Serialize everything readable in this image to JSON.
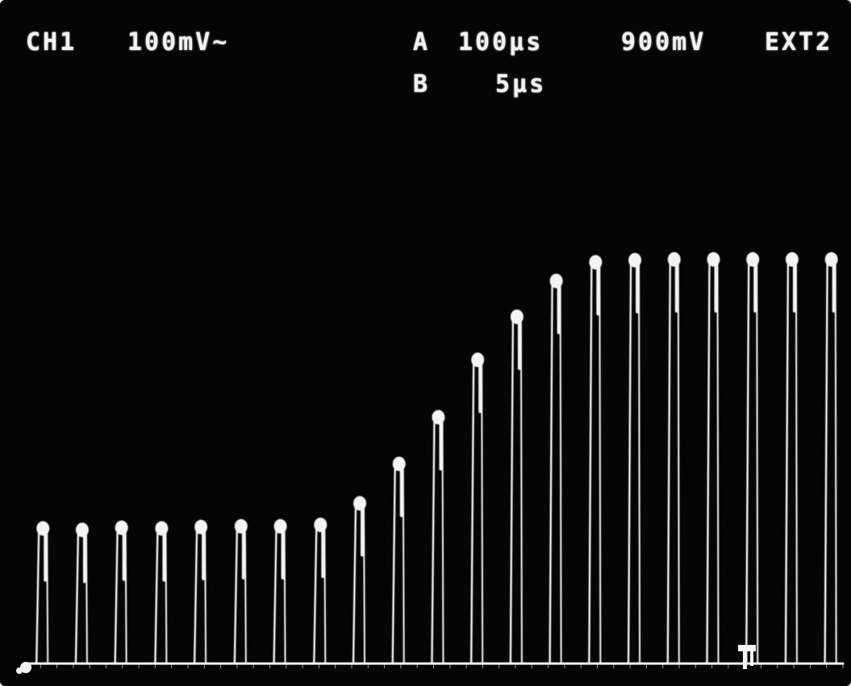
{
  "readouts": {
    "ch1_label": "CH1",
    "ch1_scale": "100mV~",
    "a_label": "A",
    "a_timebase": "100µs",
    "trigger_level": "900mV",
    "trigger_source": "EXT2",
    "b_label": "B",
    "b_timebase": "5µs"
  },
  "colors": {
    "screen_background": "#050505",
    "trace": "#f4f4f4",
    "graticule": "#9a9a9a"
  },
  "chart_data": {
    "type": "oscilloscope-pulse-train",
    "title": "",
    "xlabel": "",
    "ylabel": "",
    "x_unit": "divisions",
    "y_unit": "divisions",
    "xlim": [
      0,
      10
    ],
    "ylim": [
      0,
      8
    ],
    "pulse_count": 21,
    "pulse_x": [
      0.15,
      0.63,
      1.11,
      1.6,
      2.08,
      2.57,
      3.05,
      3.54,
      4.02,
      4.5,
      4.98,
      5.46,
      5.94,
      6.42,
      6.9,
      7.38,
      7.86,
      8.34,
      8.82,
      9.3,
      9.78
    ],
    "pulse_peaks": [
      2.05,
      2.03,
      2.06,
      2.05,
      2.07,
      2.08,
      2.08,
      2.1,
      2.4,
      2.95,
      3.6,
      4.4,
      5.0,
      5.5,
      5.76,
      5.79,
      5.8,
      5.8,
      5.8,
      5.8,
      5.8
    ],
    "baseline": 0.1,
    "grid": false
  }
}
